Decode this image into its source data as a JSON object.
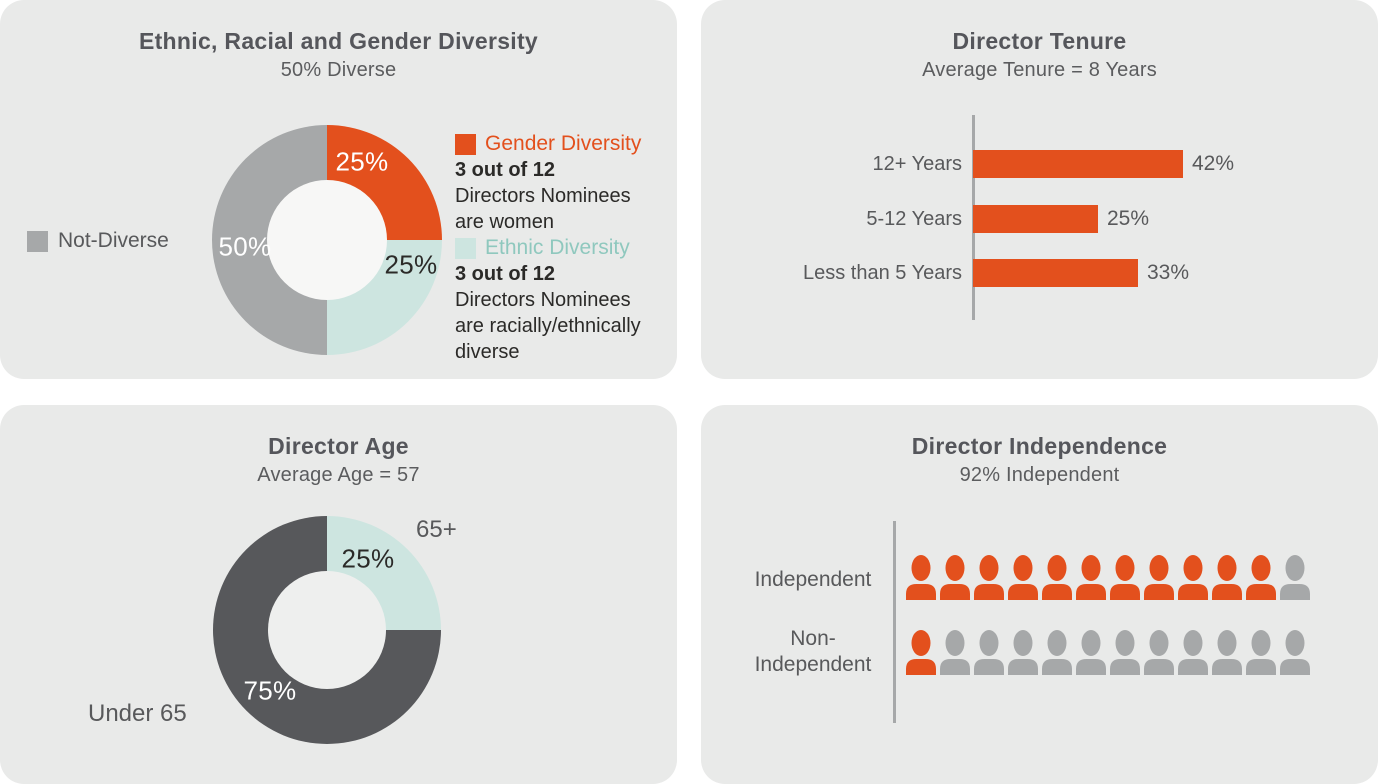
{
  "colors": {
    "orange": "#E3501D",
    "teal": "#CDE5E0",
    "teal_text": "#8FC8BE",
    "gray": "#A6A8A9",
    "dark": "#57585B",
    "ink": "#2B2A28"
  },
  "panels": {
    "diversity": {
      "title": "Ethnic, Racial and Gender Diversity",
      "subtitle": "50% Diverse",
      "not_diverse_label": "Not-Diverse",
      "gender_pct": "25%",
      "ethnic_pct": "25%",
      "not_diverse_pct": "50%",
      "legend": [
        {
          "name": "Gender Diversity",
          "stat": "3 out of 12",
          "lines": [
            "Directors Nominees",
            "are women"
          ]
        },
        {
          "name": "Ethnic Diversity",
          "stat": "3 out of 12",
          "lines": [
            "Directors Nominees",
            "are racially/ethnically",
            "diverse"
          ]
        }
      ]
    },
    "tenure": {
      "title": "Director Tenure",
      "subtitle": "Average Tenure = 8 Years",
      "rows": [
        {
          "label": "12+ Years",
          "pct": "42%"
        },
        {
          "label": "5-12 Years",
          "pct": "25%"
        },
        {
          "label": "Less than 5 Years",
          "pct": "33%"
        }
      ]
    },
    "age": {
      "title": "Director Age",
      "subtitle": "Average Age = 57",
      "older_label": "65+",
      "older_pct": "25%",
      "younger_label": "Under 65",
      "younger_pct": "75%"
    },
    "independence": {
      "title": "Director Independence",
      "subtitle": "92% Independent",
      "row1_label": "Independent",
      "row2_label_line1": "Non-",
      "row2_label_line2": "Independent"
    }
  },
  "chart_data": [
    {
      "type": "pie",
      "donut": true,
      "title": "Ethnic, Racial and Gender Diversity",
      "subtitle": "50% Diverse",
      "slices": [
        {
          "label": "Gender Diversity",
          "value": 25,
          "color": "#E3501D"
        },
        {
          "label": "Ethnic Diversity",
          "value": 25,
          "color": "#CDE5E0"
        },
        {
          "label": "Not-Diverse",
          "value": 50,
          "color": "#A6A8A9"
        }
      ],
      "annotations": [
        "3 out of 12 Directors Nominees are women",
        "3 out of 12 Directors Nominees are racially/ethnically diverse"
      ]
    },
    {
      "type": "bar",
      "orientation": "horizontal",
      "title": "Director Tenure",
      "subtitle": "Average Tenure = 8 Years",
      "categories": [
        "12+ Years",
        "5-12 Years",
        "Less than 5 Years"
      ],
      "values": [
        42,
        25,
        33
      ],
      "unit": "%",
      "xlim": [
        0,
        50
      ],
      "bar_color": "#E3501D",
      "grid": false
    },
    {
      "type": "pie",
      "donut": true,
      "title": "Director Age",
      "subtitle": "Average Age = 57",
      "slices": [
        {
          "label": "65+",
          "value": 25,
          "color": "#CDE5E0"
        },
        {
          "label": "Under 65",
          "value": 75,
          "color": "#57585B"
        }
      ]
    },
    {
      "type": "pictogram",
      "icon": "person",
      "title": "Director Independence",
      "subtitle": "92% Independent",
      "rows": [
        {
          "label": "Independent",
          "filled": 11,
          "total": 12,
          "filled_color": "#E3501D",
          "empty_color": "#A6A8A9"
        },
        {
          "label": "Non-Independent",
          "filled": 1,
          "total": 12,
          "filled_color": "#E3501D",
          "empty_color": "#A6A8A9"
        }
      ]
    }
  ]
}
